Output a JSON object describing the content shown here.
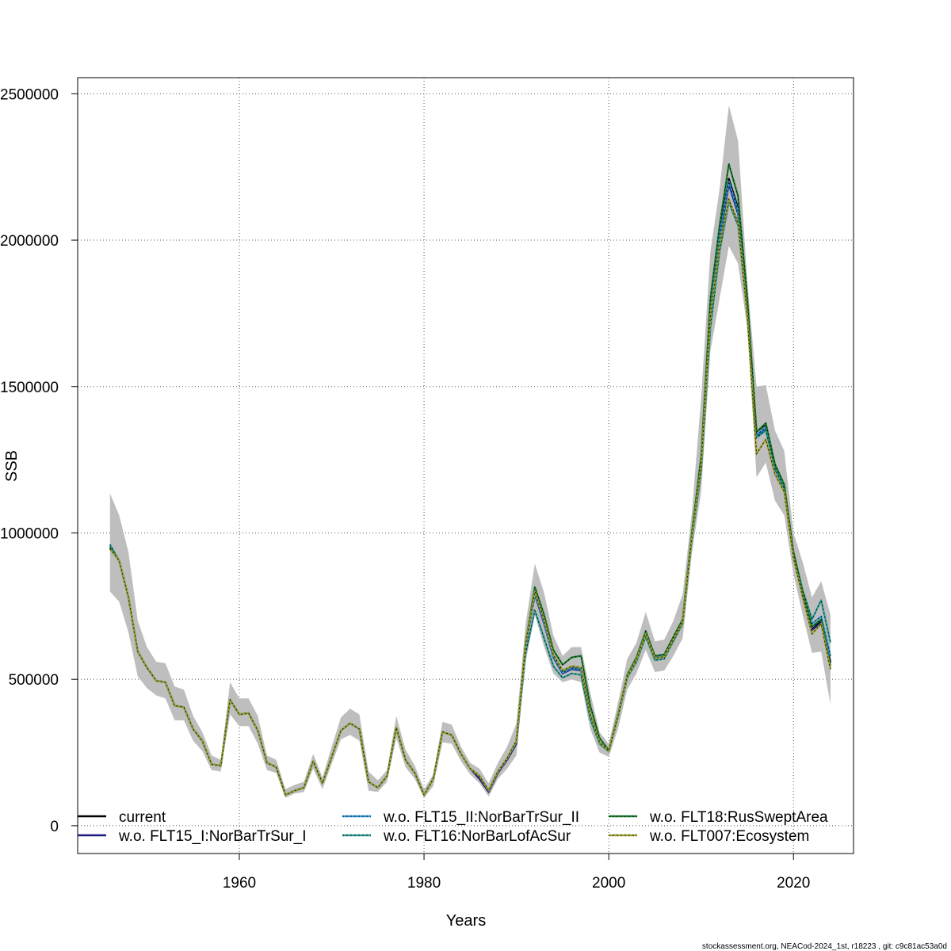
{
  "chart_data": {
    "type": "line",
    "xlabel": "Years",
    "ylabel": "SSB",
    "xlim": [
      1942.5,
      2026.5
    ],
    "ylim": [
      -95000,
      2555000
    ],
    "x_ticks": [
      1960,
      1980,
      2000,
      2020
    ],
    "y_ticks": [
      0,
      500000,
      1000000,
      1500000,
      2000000,
      2500000
    ],
    "x_tick_labels": [
      "1960",
      "1980",
      "2000",
      "2020"
    ],
    "y_tick_labels": [
      "0",
      "500000",
      "1000000",
      "1500000",
      "2000000",
      "2500000"
    ],
    "grid": true,
    "legend_position": "bottom",
    "confidence_band_color": "#bebebe",
    "x": [
      1946,
      1947,
      1948,
      1949,
      1950,
      1951,
      1952,
      1953,
      1954,
      1955,
      1956,
      1957,
      1958,
      1959,
      1960,
      1961,
      1962,
      1963,
      1964,
      1965,
      1966,
      1967,
      1968,
      1969,
      1970,
      1971,
      1972,
      1973,
      1974,
      1975,
      1976,
      1977,
      1978,
      1979,
      1980,
      1981,
      1982,
      1983,
      1984,
      1985,
      1986,
      1987,
      1988,
      1989,
      1990,
      1991,
      1992,
      1993,
      1994,
      1995,
      1996,
      1997,
      1998,
      1999,
      2000,
      2001,
      2002,
      2003,
      2004,
      2005,
      2006,
      2007,
      2008,
      2009,
      2010,
      2011,
      2012,
      2013,
      2014,
      2015,
      2016,
      2017,
      2018,
      2019,
      2020,
      2021,
      2022,
      2023,
      2024
    ],
    "band": {
      "low": [
        800000,
        765000,
        660000,
        510000,
        470000,
        445000,
        435000,
        360000,
        360000,
        290000,
        255000,
        190000,
        185000,
        380000,
        340000,
        340000,
        280000,
        190000,
        180000,
        95000,
        110000,
        115000,
        195000,
        125000,
        210000,
        295000,
        310000,
        290000,
        120000,
        115000,
        150000,
        300000,
        200000,
        160000,
        95000,
        135000,
        285000,
        280000,
        220000,
        175000,
        145000,
        100000,
        160000,
        195000,
        240000,
        560000,
        720000,
        610000,
        520000,
        490000,
        500000,
        490000,
        330000,
        250000,
        235000,
        330000,
        465000,
        520000,
        600000,
        525000,
        530000,
        580000,
        640000,
        930000,
        1140000,
        1620000,
        1800000,
        1980000,
        1920000,
        1700000,
        1190000,
        1240000,
        1110000,
        1060000,
        860000,
        720000,
        590000,
        595000,
        415000
      ],
      "high": [
        1135000,
        1060000,
        935000,
        700000,
        610000,
        560000,
        555000,
        475000,
        465000,
        375000,
        320000,
        240000,
        225000,
        490000,
        435000,
        435000,
        375000,
        240000,
        225000,
        125000,
        140000,
        150000,
        245000,
        165000,
        270000,
        370000,
        400000,
        380000,
        185000,
        155000,
        190000,
        375000,
        260000,
        205000,
        125000,
        175000,
        355000,
        345000,
        270000,
        215000,
        195000,
        145000,
        215000,
        270000,
        350000,
        690000,
        895000,
        795000,
        650000,
        580000,
        610000,
        610000,
        455000,
        320000,
        280000,
        420000,
        570000,
        625000,
        730000,
        630000,
        635000,
        700000,
        790000,
        1070000,
        1460000,
        1960000,
        2175000,
        2460000,
        2340000,
        1860000,
        1500000,
        1505000,
        1350000,
        1280000,
        1000000,
        900000,
        780000,
        835000,
        720000
      ]
    },
    "series": [
      {
        "name": "current",
        "color": "#000000",
        "dashed": false,
        "values": [
          950000,
          905000,
          780000,
          595000,
          540000,
          495000,
          490000,
          410000,
          405000,
          330000,
          290000,
          210000,
          205000,
          430000,
          380000,
          385000,
          325000,
          215000,
          200000,
          105000,
          120000,
          130000,
          220000,
          145000,
          235000,
          325000,
          350000,
          330000,
          150000,
          130000,
          170000,
          335000,
          225000,
          180000,
          105000,
          160000,
          320000,
          310000,
          245000,
          195000,
          170000,
          120000,
          185000,
          230000,
          290000,
          620000,
          800000,
          700000,
          580000,
          525000,
          540000,
          535000,
          380000,
          285000,
          255000,
          375000,
          510000,
          570000,
          660000,
          575000,
          580000,
          640000,
          700000,
          990000,
          1240000,
          1760000,
          2020000,
          2210000,
          2110000,
          1780000,
          1345000,
          1370000,
          1230000,
          1160000,
          930000,
          790000,
          670000,
          700000,
          560000
        ]
      },
      {
        "name": "w.o. FLT15_I:NorBarTrSur_I",
        "color": "#1a1a80",
        "dashed": false,
        "values": [
          950000,
          905000,
          780000,
          595000,
          540000,
          495000,
          490000,
          410000,
          405000,
          330000,
          290000,
          210000,
          205000,
          430000,
          380000,
          385000,
          325000,
          215000,
          200000,
          105000,
          120000,
          130000,
          220000,
          145000,
          235000,
          325000,
          350000,
          330000,
          150000,
          130000,
          170000,
          335000,
          225000,
          180000,
          105000,
          160000,
          320000,
          310000,
          245000,
          195000,
          160000,
          115000,
          180000,
          225000,
          280000,
          615000,
          790000,
          690000,
          575000,
          520000,
          535000,
          530000,
          378000,
          283000,
          254000,
          372000,
          505000,
          565000,
          655000,
          572000,
          578000,
          638000,
          698000,
          985000,
          1230000,
          1745000,
          2000000,
          2190000,
          2090000,
          1760000,
          1330000,
          1355000,
          1220000,
          1150000,
          925000,
          785000,
          668000,
          695000,
          555000
        ]
      },
      {
        "name": "w.o. FLT15_II:NorBarTrSur_II",
        "color": "#2e96d8",
        "dashed": true,
        "values": [
          955000,
          905000,
          780000,
          595000,
          540000,
          495000,
          490000,
          410000,
          405000,
          330000,
          290000,
          210000,
          205000,
          430000,
          380000,
          385000,
          325000,
          215000,
          200000,
          105000,
          120000,
          130000,
          220000,
          145000,
          235000,
          325000,
          350000,
          330000,
          150000,
          130000,
          170000,
          335000,
          225000,
          180000,
          105000,
          160000,
          320000,
          310000,
          245000,
          195000,
          170000,
          120000,
          185000,
          230000,
          290000,
          620000,
          795000,
          695000,
          578000,
          523000,
          538000,
          533000,
          378000,
          284000,
          255000,
          374000,
          508000,
          568000,
          658000,
          574000,
          579000,
          639000,
          699000,
          988000,
          1235000,
          1750000,
          2010000,
          2200000,
          2100000,
          1770000,
          1335000,
          1360000,
          1225000,
          1155000,
          928000,
          788000,
          690000,
          715000,
          580000
        ]
      },
      {
        "name": "w.o. FLT16:NorBarLofAcSur",
        "color": "#2a9d94",
        "dashed": true,
        "values": [
          960000,
          905000,
          780000,
          595000,
          540000,
          495000,
          490000,
          410000,
          405000,
          330000,
          290000,
          210000,
          205000,
          430000,
          380000,
          385000,
          325000,
          215000,
          200000,
          105000,
          120000,
          130000,
          220000,
          145000,
          235000,
          325000,
          350000,
          330000,
          150000,
          130000,
          170000,
          335000,
          225000,
          180000,
          105000,
          160000,
          320000,
          310000,
          245000,
          195000,
          170000,
          120000,
          185000,
          230000,
          285000,
          590000,
          735000,
          640000,
          545000,
          505000,
          520000,
          515000,
          365000,
          280000,
          253000,
          370000,
          505000,
          560000,
          645000,
          565000,
          570000,
          630000,
          690000,
          975000,
          1210000,
          1700000,
          1960000,
          2130000,
          2050000,
          1740000,
          1325000,
          1350000,
          1225000,
          1150000,
          935000,
          805000,
          705000,
          770000,
          625000
        ]
      },
      {
        "name": "w.o. FLT18:RusSweptArea",
        "color": "#1a7a2e",
        "dashed": true,
        "values": [
          950000,
          905000,
          780000,
          595000,
          540000,
          495000,
          490000,
          410000,
          405000,
          330000,
          290000,
          210000,
          205000,
          430000,
          380000,
          385000,
          325000,
          215000,
          200000,
          105000,
          120000,
          130000,
          220000,
          145000,
          235000,
          325000,
          350000,
          330000,
          150000,
          130000,
          170000,
          335000,
          225000,
          180000,
          105000,
          160000,
          320000,
          310000,
          245000,
          195000,
          170000,
          120000,
          185000,
          230000,
          290000,
          625000,
          815000,
          720000,
          600000,
          550000,
          575000,
          580000,
          410000,
          300000,
          258000,
          380000,
          515000,
          575000,
          665000,
          580000,
          585000,
          645000,
          705000,
          1000000,
          1260000,
          1800000,
          2050000,
          2260000,
          2150000,
          1800000,
          1345000,
          1375000,
          1235000,
          1165000,
          935000,
          795000,
          680000,
          705000,
          545000
        ]
      },
      {
        "name": "w.o. FLT007:Ecosystem",
        "color": "#a0a030",
        "dashed": true,
        "values": [
          945000,
          905000,
          780000,
          595000,
          540000,
          495000,
          490000,
          410000,
          405000,
          330000,
          290000,
          210000,
          205000,
          430000,
          380000,
          385000,
          325000,
          215000,
          200000,
          105000,
          120000,
          130000,
          220000,
          145000,
          235000,
          325000,
          350000,
          330000,
          150000,
          130000,
          170000,
          335000,
          225000,
          180000,
          105000,
          160000,
          320000,
          310000,
          245000,
          195000,
          170000,
          120000,
          185000,
          230000,
          290000,
          620000,
          800000,
          705000,
          585000,
          530000,
          545000,
          540000,
          382000,
          286000,
          255000,
          375000,
          510000,
          568000,
          655000,
          572000,
          577000,
          636000,
          696000,
          985000,
          1230000,
          1740000,
          1980000,
          2140000,
          2060000,
          1740000,
          1270000,
          1320000,
          1200000,
          1140000,
          915000,
          780000,
          655000,
          690000,
          535000
        ]
      }
    ]
  },
  "footer": "stockassessment.org, NEACod-2024_1st, r18223 , git: c9c81ac53a0d"
}
